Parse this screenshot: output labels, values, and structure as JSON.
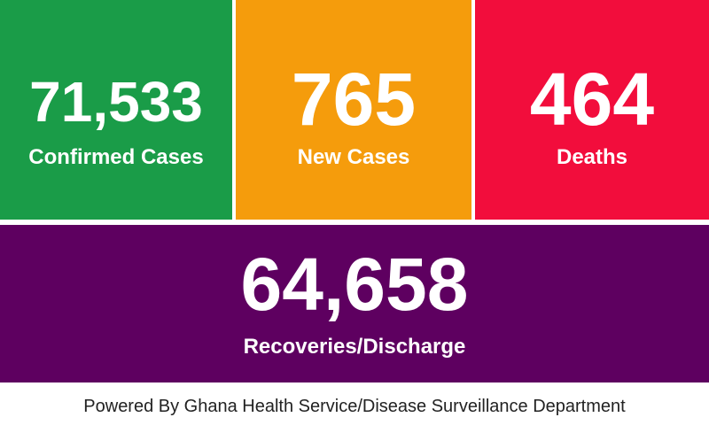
{
  "tiles": [
    {
      "value": "71,533",
      "label": "Confirmed Cases"
    },
    {
      "value": "765",
      "label": "New Cases"
    },
    {
      "value": "464",
      "label": "Deaths"
    },
    {
      "value": "64,658",
      "label": "Recoveries/Discharge"
    }
  ],
  "footer": "Powered By Ghana Health Service/Disease Surveillance Department"
}
